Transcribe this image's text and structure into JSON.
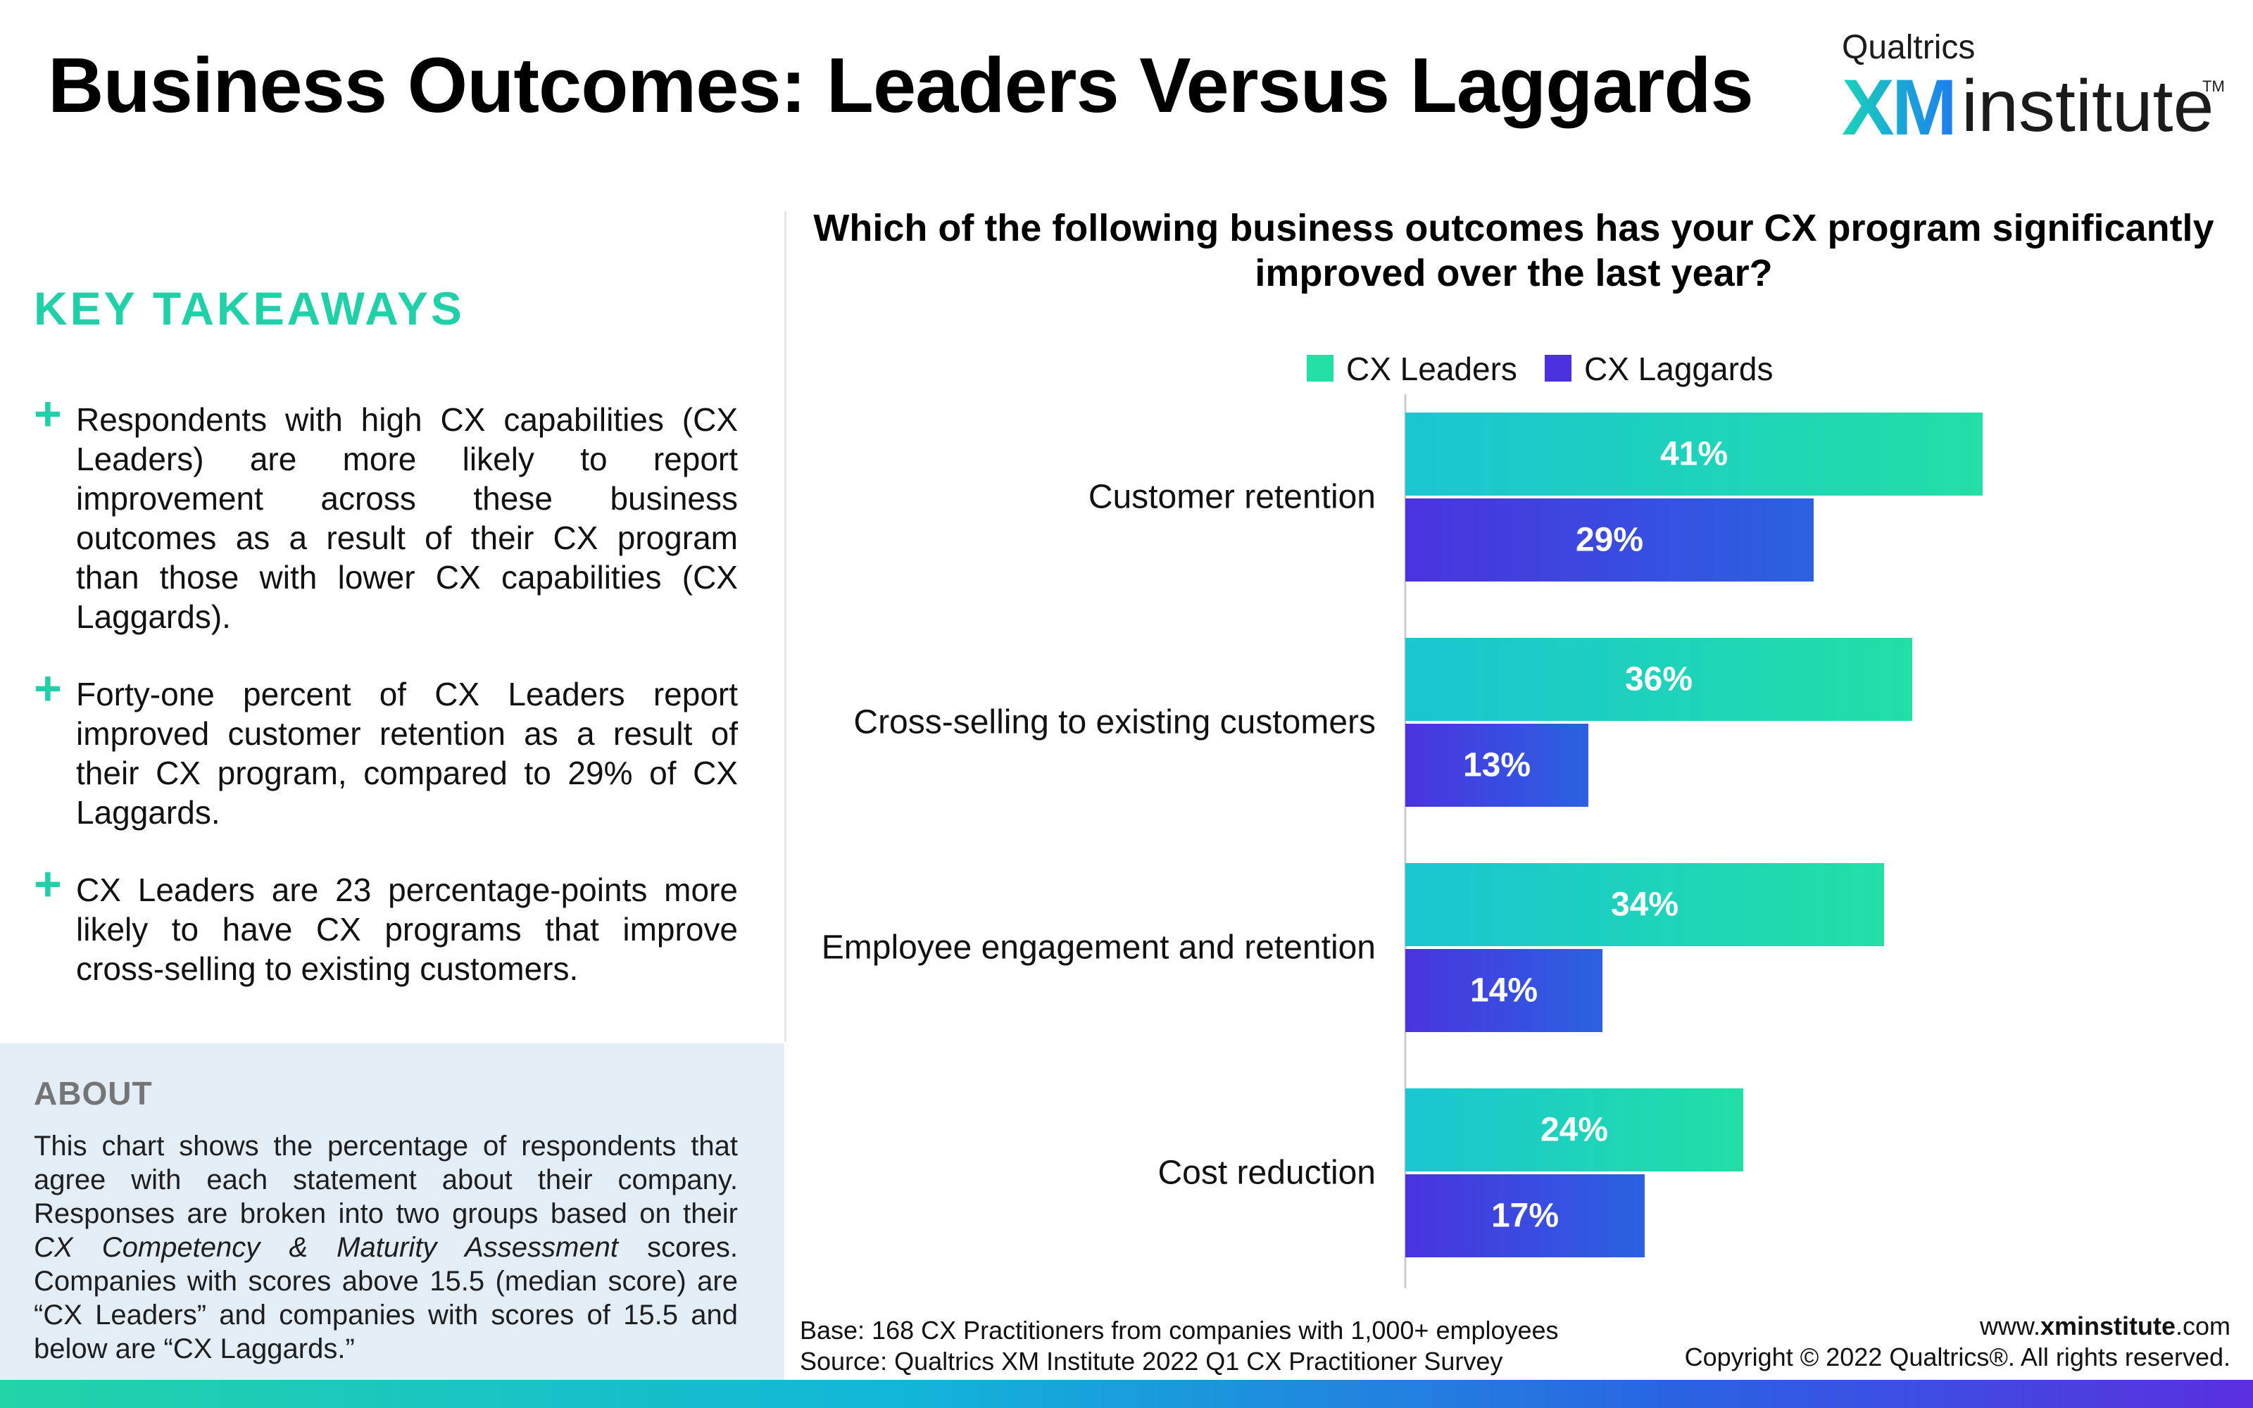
{
  "page": {
    "title": "Business Outcomes: Leaders Versus Laggards",
    "logo": {
      "brand": "Qualtrics",
      "mark": "XM",
      "word": "institute",
      "tm": "TM"
    }
  },
  "takeaways": {
    "heading": "KEY TAKEAWAYS",
    "items": [
      "Respondents with high CX capabilities (CX Leaders) are more likely to report improvement across these business outcomes as a result of their CX program than those with lower CX capabilities (CX Laggards).",
      "Forty-one percent of CX Leaders report improved customer retention as a result of their CX program, compared to 29% of CX Laggards.",
      "CX Leaders are 23 percentage-points more likely to have CX programs that improve cross-selling to existing customers."
    ]
  },
  "about": {
    "heading": "ABOUT",
    "part1": "This chart shows the percentage of respondents that agree with each statement about their company. Responses are broken into two groups based on their ",
    "italic": "CX Competency & Maturity Assessment",
    "part2": " scores. Companies with scores above 15.5 (median score) are “CX Leaders” and companies with scores of 15.5 and below are “CX Laggards.”"
  },
  "chart_data": {
    "type": "bar",
    "orientation": "horizontal",
    "title": "Which of the following business outcomes has your CX program significantly improved over the last year?",
    "categories": [
      "Customer retention",
      "Cross-selling to existing customers",
      "Employee engagement and retention",
      "Cost reduction"
    ],
    "series": [
      {
        "name": "CX Leaders",
        "values": [
          41,
          36,
          34,
          24
        ],
        "labels": [
          "41%",
          "36%",
          "34%",
          "24%"
        ],
        "color_start": "#19c6d2",
        "color_end": "#22dfa5"
      },
      {
        "name": "CX Laggards",
        "values": [
          29,
          13,
          14,
          17
        ],
        "labels": [
          "29%",
          "13%",
          "14%",
          "17%"
        ],
        "color_start": "#4a33df",
        "color_end": "#2a62e0"
      }
    ],
    "xlim": [
      0,
      60
    ],
    "legend": "top",
    "grid": false
  },
  "footer": {
    "base": "Base: 168 CX Practitioners from companies with 1,000+ employees",
    "source": "Source: Qualtrics XM Institute 2022 Q1 CX Practitioner Survey",
    "web_prefix": "www.",
    "web_bold": "xminstitute",
    "web_suffix": ".com",
    "copyright": "Copyright © 2022 Qualtrics®. All rights reserved."
  },
  "colors": {
    "accent": "#1fd0a8",
    "about_bg": "#e3edf6"
  }
}
